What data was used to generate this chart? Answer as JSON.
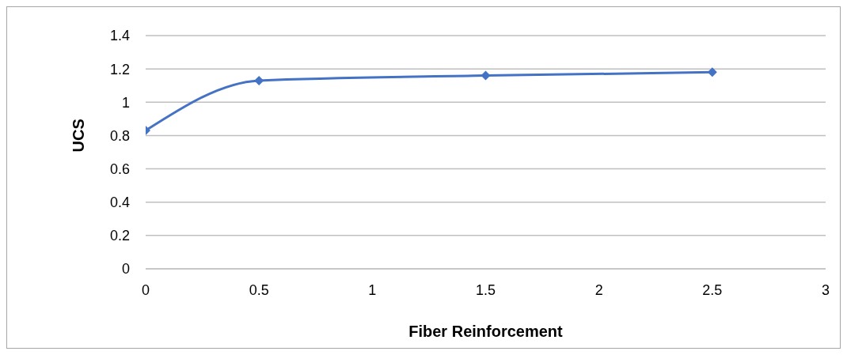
{
  "chart_data": {
    "type": "line",
    "xlabel": "Fiber Reinforcement",
    "ylabel": "UCS",
    "x": [
      0,
      0.5,
      1.5,
      2.5
    ],
    "series": [
      {
        "color": "#4472c4",
        "values": [
          0.83,
          1.13,
          1.16,
          1.18
        ]
      }
    ],
    "xlim": [
      0,
      3
    ],
    "xticks": [
      0,
      0.5,
      1,
      1.5,
      2,
      2.5,
      3
    ],
    "ylim": [
      0,
      1.4
    ],
    "yticks": [
      0,
      0.2,
      0.4,
      0.6,
      0.8,
      1,
      1.2,
      1.4
    ],
    "grid": "y",
    "marker": "diamond",
    "legend": false
  }
}
